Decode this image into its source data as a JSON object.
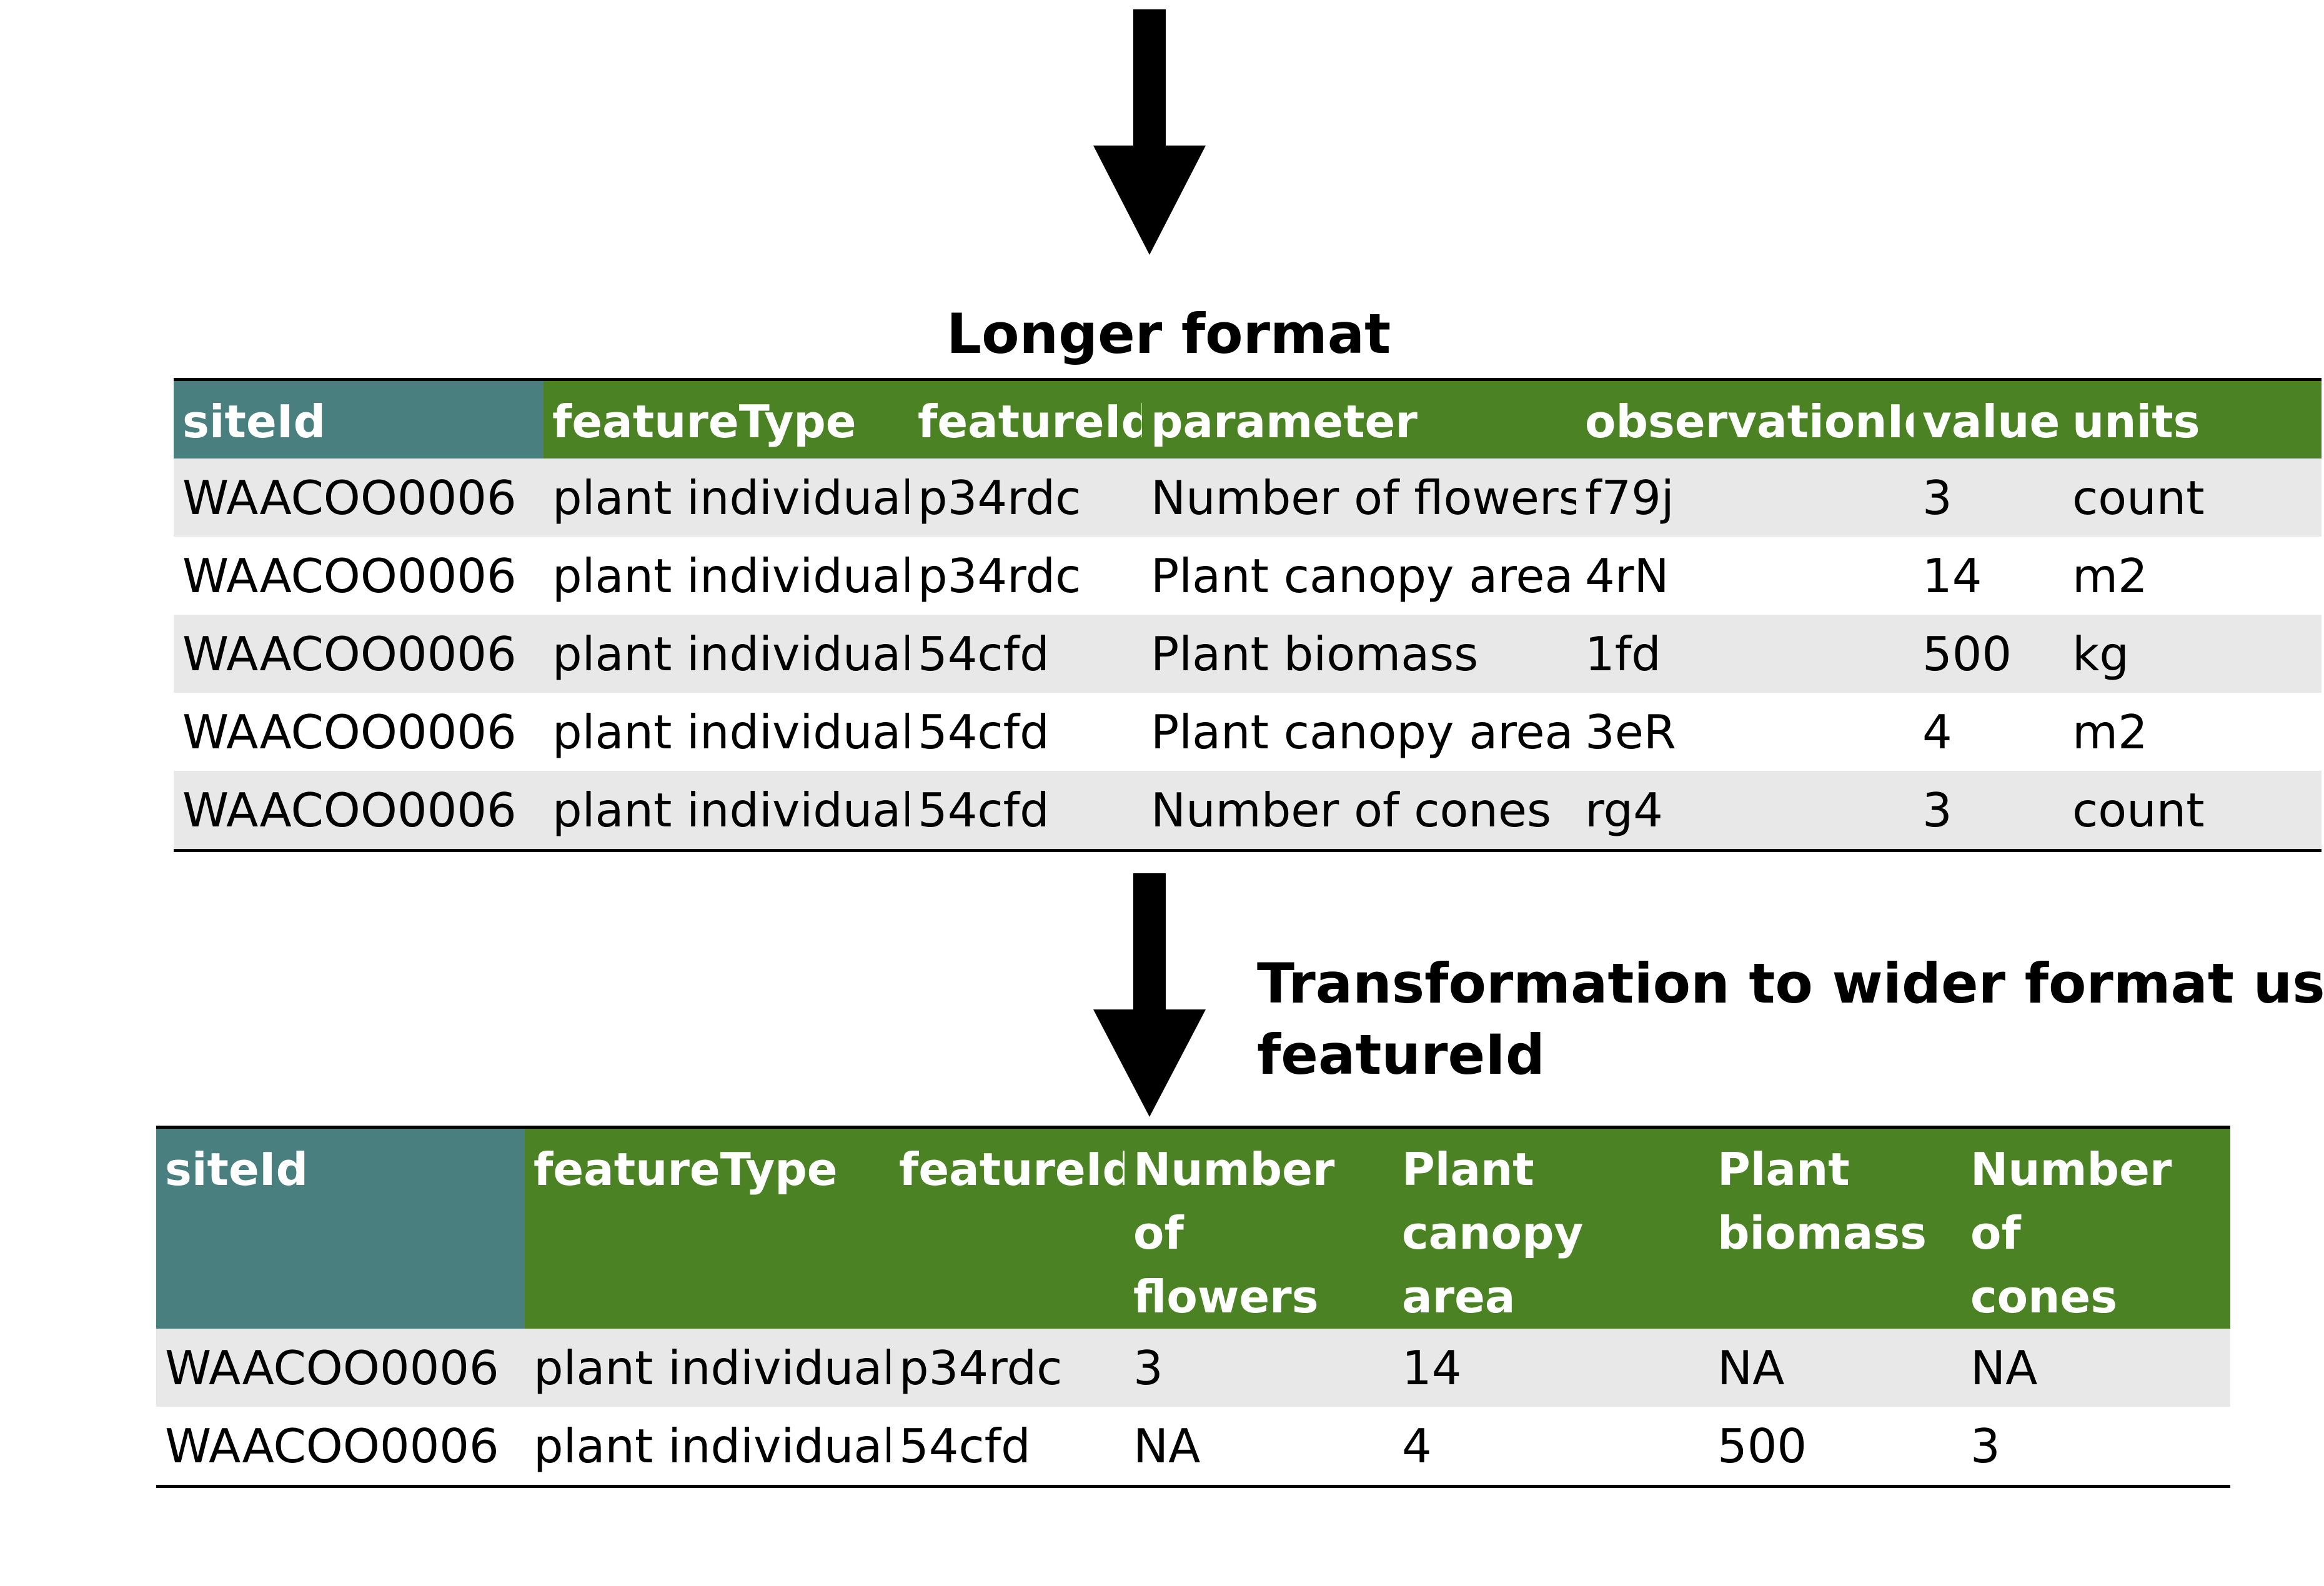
{
  "long_table": {
    "title": "Longer format",
    "columns": [
      "siteId",
      "featureType",
      "featureId",
      "parameter",
      "observationId",
      "value",
      "units"
    ],
    "rows": [
      [
        "WAACOO0006",
        "plant individual",
        "p34rdc",
        "Number of flowers",
        "f79j",
        "3",
        "count"
      ],
      [
        "WAACOO0006",
        "plant individual",
        "p34rdc",
        "Plant canopy area",
        "4rN",
        "14",
        "m2"
      ],
      [
        "WAACOO0006",
        "plant individual",
        "54cfd",
        "Plant biomass",
        "1fd",
        "500",
        "kg"
      ],
      [
        "WAACOO0006",
        "plant individual",
        "54cfd",
        "Plant canopy area",
        "3eR",
        "4",
        "m2"
      ],
      [
        "WAACOO0006",
        "plant individual",
        "54cfd",
        "Number of cones",
        "rg4",
        "3",
        "count"
      ]
    ]
  },
  "transformation": {
    "title_line1": "Transformation to wider format using",
    "title_line2": "featureId"
  },
  "wide_table": {
    "columns": [
      "siteId",
      "featureType",
      "featureId",
      "Number of\n flowers",
      "Plant canopy\n area",
      "Plant\nbiomass",
      "Number of\n cones"
    ],
    "rows": [
      [
        "WAACOO0006",
        "plant individual",
        "p34rdc",
        "3",
        "14",
        "NA",
        "NA"
      ],
      [
        "WAACOO0006",
        "plant individual",
        "54cfd",
        "NA",
        "4",
        "500",
        "3"
      ]
    ]
  },
  "colors": {
    "site_header": "#4a7f80",
    "header": "#4a8224",
    "shaded_row": "#e8e8e8"
  }
}
